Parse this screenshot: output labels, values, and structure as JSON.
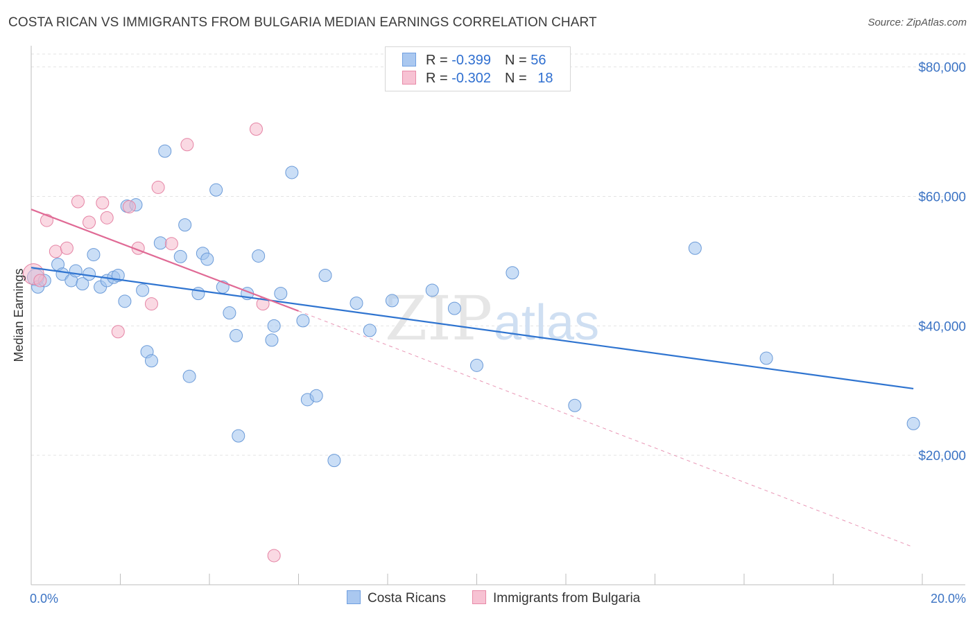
{
  "title": "COSTA RICAN VS IMMIGRANTS FROM BULGARIA MEDIAN EARNINGS CORRELATION CHART",
  "source": "Source: ZipAtlas.com",
  "watermark": {
    "zip": "ZIP",
    "atlas": "atlas"
  },
  "legend": {
    "rows": [
      {
        "r_label": "R = ",
        "r_value": "-0.399",
        "n_label": "N = ",
        "n_value": "56",
        "color": "#aac8f0",
        "border": "#6f9fe0"
      },
      {
        "r_label": "R = ",
        "r_value": "-0.302",
        "n_label": "N = ",
        "n_value": "18",
        "color": "#f7c2d3",
        "border": "#e88aa8"
      }
    ]
  },
  "bottom_legend": {
    "series1": "Costa Ricans",
    "series2": "Immigrants from Bulgaria"
  },
  "chart_data": {
    "type": "scatter",
    "title": "COSTA RICAN VS IMMIGRANTS FROM BULGARIA MEDIAN EARNINGS CORRELATION CHART",
    "xlabel": "",
    "ylabel": "Median Earnings",
    "xlim": [
      0,
      20
    ],
    "ylim": [
      0,
      82000
    ],
    "x_tick_labels": [
      "0.0%",
      "20.0%"
    ],
    "y_ticks": [
      20000,
      40000,
      60000,
      80000
    ],
    "y_tick_labels": [
      "$20,000",
      "$40,000",
      "$60,000",
      "$80,000"
    ],
    "grid": true,
    "series": [
      {
        "name": "Costa Ricans",
        "color": "#9fc2ee",
        "stroke": "#6a9ad8",
        "line_color": "#2f74d0",
        "trend": {
          "x": [
            0.0,
            19.8
          ],
          "y": [
            49000,
            30300
          ]
        },
        "points": [
          [
            0.1,
            47500,
            12
          ],
          [
            0.15,
            46000,
            9
          ],
          [
            0.3,
            47000,
            9
          ],
          [
            0.6,
            49500,
            9
          ],
          [
            0.7,
            48000,
            9
          ],
          [
            0.9,
            47000,
            9
          ],
          [
            1.0,
            48500,
            9
          ],
          [
            1.15,
            46500,
            9
          ],
          [
            1.3,
            48000,
            9
          ],
          [
            1.4,
            51000,
            9
          ],
          [
            1.55,
            46000,
            9
          ],
          [
            1.7,
            47000,
            9
          ],
          [
            1.85,
            47500,
            9
          ],
          [
            1.95,
            47800,
            9
          ],
          [
            2.1,
            43800,
            9
          ],
          [
            2.15,
            58500,
            9
          ],
          [
            2.35,
            58700,
            9
          ],
          [
            2.5,
            45500,
            9
          ],
          [
            2.6,
            36000,
            9
          ],
          [
            2.7,
            34600,
            9
          ],
          [
            2.9,
            52800,
            9
          ],
          [
            3.0,
            67000,
            9
          ],
          [
            3.35,
            50700,
            9
          ],
          [
            3.45,
            55600,
            9
          ],
          [
            3.55,
            32200,
            9
          ],
          [
            3.75,
            45000,
            9
          ],
          [
            3.85,
            51200,
            9
          ],
          [
            3.95,
            50300,
            9
          ],
          [
            4.15,
            61000,
            9
          ],
          [
            4.3,
            46000,
            9
          ],
          [
            4.45,
            42000,
            9
          ],
          [
            4.6,
            38500,
            9
          ],
          [
            4.65,
            23000,
            9
          ],
          [
            4.85,
            45000,
            9
          ],
          [
            5.1,
            50800,
            9
          ],
          [
            5.4,
            37800,
            9
          ],
          [
            5.45,
            40000,
            9
          ],
          [
            5.6,
            45000,
            9
          ],
          [
            5.85,
            63700,
            9
          ],
          [
            6.1,
            40800,
            9
          ],
          [
            6.2,
            28600,
            9
          ],
          [
            6.4,
            29200,
            9
          ],
          [
            6.6,
            47800,
            9
          ],
          [
            6.8,
            19200,
            9
          ],
          [
            7.3,
            43500,
            9
          ],
          [
            7.6,
            39300,
            9
          ],
          [
            8.1,
            43900,
            9
          ],
          [
            9.0,
            45500,
            9
          ],
          [
            9.5,
            42700,
            9
          ],
          [
            10.0,
            33900,
            9
          ],
          [
            10.8,
            48200,
            9
          ],
          [
            12.2,
            27700,
            9
          ],
          [
            14.9,
            52000,
            9
          ],
          [
            16.5,
            35000,
            9
          ],
          [
            19.8,
            24900,
            9
          ]
        ]
      },
      {
        "name": "Immigrants from Bulgaria",
        "color": "#f5b9cc",
        "stroke": "#e583a4",
        "line_color": "#e06a95",
        "trend": {
          "x": [
            0.0,
            6.0
          ],
          "y": [
            58000,
            42300
          ]
        },
        "trend_extension": {
          "x": [
            6.0,
            19.8
          ],
          "y": [
            42300,
            5800
          ]
        },
        "points": [
          [
            0.05,
            48000,
            15
          ],
          [
            0.2,
            47000,
            9
          ],
          [
            0.35,
            56300,
            9
          ],
          [
            0.55,
            51500,
            9
          ],
          [
            0.8,
            52000,
            9
          ],
          [
            1.05,
            59200,
            9
          ],
          [
            1.3,
            56000,
            9
          ],
          [
            1.6,
            59000,
            9
          ],
          [
            1.7,
            56700,
            9
          ],
          [
            1.95,
            39100,
            9
          ],
          [
            2.2,
            58400,
            9
          ],
          [
            2.4,
            52000,
            9
          ],
          [
            2.7,
            43400,
            9
          ],
          [
            2.85,
            61400,
            9
          ],
          [
            3.15,
            52700,
            9
          ],
          [
            3.5,
            68000,
            9
          ],
          [
            5.05,
            70400,
            9
          ],
          [
            5.2,
            43400,
            9
          ],
          [
            5.45,
            4500,
            9
          ]
        ]
      }
    ]
  }
}
